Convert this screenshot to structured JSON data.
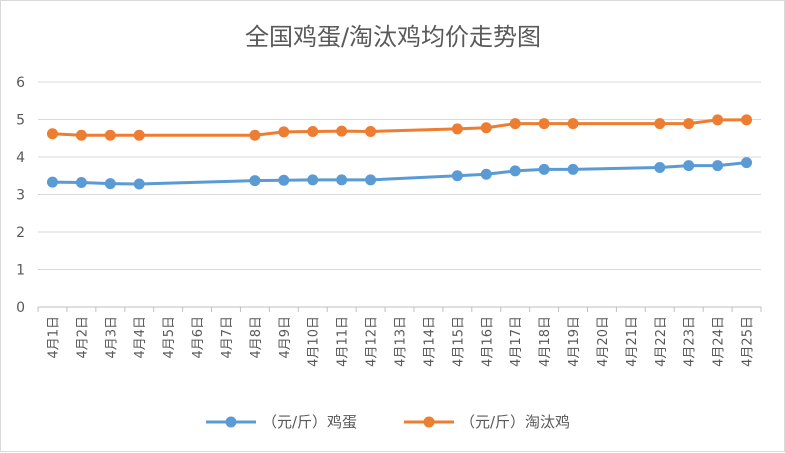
{
  "chart_data": {
    "type": "line",
    "title": "全国鸡蛋/淘汰鸡均价走势图",
    "xlabel": "",
    "ylabel": "",
    "ylim": [
      0,
      6
    ],
    "yticks": [
      "0",
      "1",
      "2",
      "3",
      "4",
      "5",
      "6"
    ],
    "categories": [
      "4月1日",
      "4月2日",
      "4月3日",
      "4月4日",
      "4月5日",
      "4月6日",
      "4月7日",
      "4月8日",
      "4月9日",
      "4月10日",
      "4月11日",
      "4月12日",
      "4月13日",
      "4月14日",
      "4月15日",
      "4月16日",
      "4月17日",
      "4月18日",
      "4月19日",
      "4月20日",
      "4月21日",
      "4月22日",
      "4月23日",
      "4月24日",
      "4月25日"
    ],
    "grid": true,
    "legend_position": "bottom",
    "series": [
      {
        "name": "（元/斤）鸡蛋",
        "color": "#5b9bd5",
        "values": [
          3.33,
          3.32,
          3.29,
          3.28,
          null,
          null,
          null,
          3.37,
          3.38,
          3.39,
          3.39,
          3.39,
          null,
          null,
          3.5,
          3.54,
          3.63,
          3.67,
          3.67,
          null,
          null,
          3.72,
          3.77,
          3.77,
          3.85
        ]
      },
      {
        "name": "（元/斤）淘汰鸡",
        "color": "#ed7d31",
        "values": [
          4.62,
          4.58,
          4.58,
          4.58,
          null,
          null,
          null,
          4.58,
          4.67,
          4.68,
          4.69,
          4.68,
          null,
          null,
          4.75,
          4.78,
          4.89,
          4.89,
          4.89,
          null,
          null,
          4.89,
          4.89,
          4.99,
          4.99
        ]
      }
    ]
  }
}
